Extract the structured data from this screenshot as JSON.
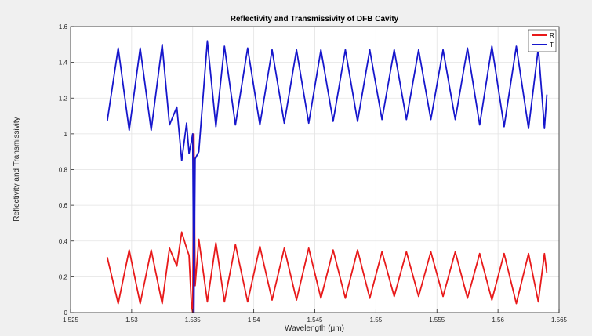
{
  "chart_data": {
    "type": "line",
    "title": "Reflectivity and Transmissivity of DFB Cavity",
    "xlabel": "Wavelength (μm)",
    "ylabel": "Reflectivity and Transmissivity",
    "xlim": [
      1.525,
      1.565
    ],
    "ylim": [
      0,
      1.6
    ],
    "xticks": [
      1.525,
      1.53,
      1.535,
      1.54,
      1.545,
      1.55,
      1.555,
      1.56,
      1.565
    ],
    "xtick_labels": [
      "1.525",
      "1.53",
      "1.535",
      "1.54",
      "1.545",
      "1.55",
      "1.555",
      "1.56",
      "1.565"
    ],
    "yticks": [
      0,
      0.2,
      0.4,
      0.6,
      0.8,
      1,
      1.2,
      1.4,
      1.6
    ],
    "ytick_labels": [
      "0",
      "0.2",
      "0.4",
      "0.6",
      "0.8",
      "1",
      "1.2",
      "1.4",
      "1.6"
    ],
    "grid": true,
    "legend_position": "top-right",
    "series": [
      {
        "name": "R",
        "color": "#e8191a",
        "x": [
          1.528,
          1.5289,
          1.5298,
          1.5307,
          1.5316,
          1.5325,
          1.5331,
          1.5337,
          1.5341,
          1.5345,
          1.5347,
          1.5349,
          1.535,
          1.5351,
          1.5352,
          1.5355,
          1.5362,
          1.5369,
          1.5376,
          1.5385,
          1.5395,
          1.5405,
          1.5415,
          1.5425,
          1.5435,
          1.5445,
          1.5455,
          1.5465,
          1.5475,
          1.5485,
          1.5495,
          1.5505,
          1.5515,
          1.5525,
          1.5535,
          1.5545,
          1.5555,
          1.5565,
          1.5575,
          1.5585,
          1.5595,
          1.5605,
          1.5615,
          1.5625,
          1.5633,
          1.5638,
          1.564
        ],
        "y": [
          0.31,
          0.05,
          0.35,
          0.05,
          0.35,
          0.05,
          0.36,
          0.26,
          0.45,
          0.36,
          0.32,
          0.04,
          0.0,
          1.0,
          0.15,
          0.41,
          0.06,
          0.39,
          0.06,
          0.38,
          0.06,
          0.37,
          0.07,
          0.36,
          0.07,
          0.36,
          0.08,
          0.35,
          0.08,
          0.35,
          0.08,
          0.34,
          0.09,
          0.34,
          0.09,
          0.34,
          0.09,
          0.34,
          0.08,
          0.33,
          0.07,
          0.33,
          0.05,
          0.33,
          0.06,
          0.33,
          0.22
        ]
      },
      {
        "name": "T",
        "color": "#1616cc",
        "x": [
          1.528,
          1.5289,
          1.5298,
          1.5307,
          1.5316,
          1.5325,
          1.5331,
          1.5337,
          1.5341,
          1.5345,
          1.5347,
          1.5349,
          1.535,
          1.5351,
          1.5352,
          1.5355,
          1.5362,
          1.5369,
          1.5376,
          1.5385,
          1.5395,
          1.5405,
          1.5415,
          1.5425,
          1.5435,
          1.5445,
          1.5455,
          1.5465,
          1.5475,
          1.5485,
          1.5495,
          1.5505,
          1.5515,
          1.5525,
          1.5535,
          1.5545,
          1.5555,
          1.5565,
          1.5575,
          1.5585,
          1.5595,
          1.5605,
          1.5615,
          1.5625,
          1.5633,
          1.5638,
          1.564
        ],
        "y": [
          1.07,
          1.48,
          1.02,
          1.48,
          1.02,
          1.5,
          1.05,
          1.15,
          0.85,
          1.06,
          0.89,
          0.96,
          1.0,
          0.0,
          0.86,
          0.9,
          1.52,
          1.04,
          1.49,
          1.05,
          1.48,
          1.05,
          1.47,
          1.06,
          1.47,
          1.06,
          1.47,
          1.07,
          1.47,
          1.07,
          1.47,
          1.08,
          1.47,
          1.08,
          1.47,
          1.08,
          1.47,
          1.08,
          1.48,
          1.05,
          1.49,
          1.04,
          1.49,
          1.03,
          1.48,
          1.03,
          1.22
        ]
      }
    ]
  }
}
